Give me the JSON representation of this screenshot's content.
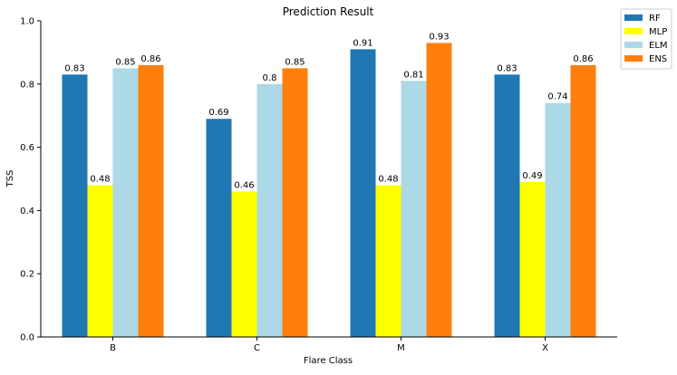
{
  "chart_data": {
    "type": "bar",
    "title": "Prediction Result",
    "xlabel": "Flare Class",
    "ylabel": "TSS",
    "categories": [
      "B",
      "C",
      "M",
      "X"
    ],
    "ylim": [
      0,
      1.0
    ],
    "yticks": [
      "0.0",
      "0.2",
      "0.4",
      "0.6",
      "0.8",
      "1.0"
    ],
    "grid": false,
    "legend_position": "top-right, outside plot",
    "series": [
      {
        "name": "RF",
        "color": "#1f77b4",
        "values": [
          0.83,
          0.69,
          0.91,
          0.83
        ],
        "labels": [
          "0.83",
          "0.69",
          "0.91",
          "0.83"
        ]
      },
      {
        "name": "MLP",
        "color": "#ffff00",
        "values": [
          0.48,
          0.46,
          0.48,
          0.49
        ],
        "labels": [
          "0.48",
          "0.46",
          "0.48",
          "0.49"
        ]
      },
      {
        "name": "ELM",
        "color": "#add8e6",
        "values": [
          0.85,
          0.8,
          0.81,
          0.74
        ],
        "labels": [
          "0.85",
          "0.8",
          "0.81",
          "0.74"
        ]
      },
      {
        "name": "ENS",
        "color": "#ff7f0e",
        "values": [
          0.86,
          0.85,
          0.93,
          0.86
        ],
        "labels": [
          "0.86",
          "0.85",
          "0.93",
          "0.86"
        ]
      }
    ]
  }
}
